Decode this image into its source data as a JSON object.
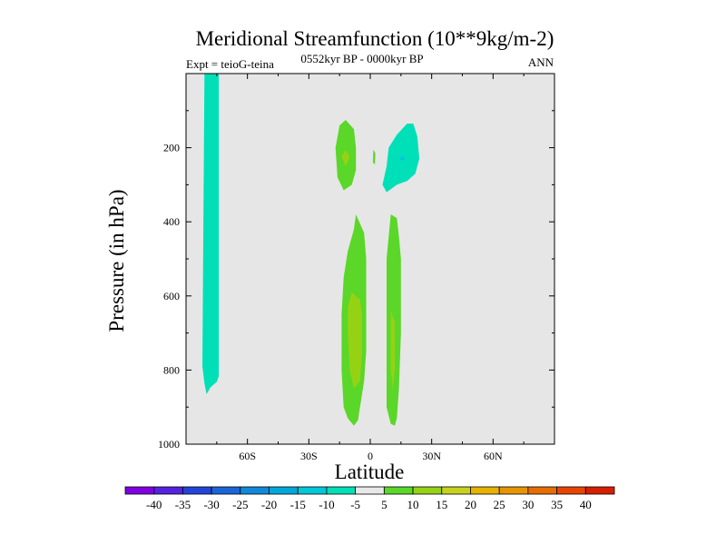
{
  "chart_data": {
    "type": "heatmap",
    "title": "Meridional Streamfunction (10**9kg/m-2)",
    "left_label": "Expt = teioG-teina",
    "center_label": "0552kyr BP - 0000kyr BP",
    "right_label": "ANN",
    "xlabel": "Latitude",
    "ylabel": "Pressure (in hPa)",
    "xlim": [
      -90,
      90
    ],
    "ylim": [
      1000,
      0
    ],
    "x_ticks": [
      {
        "value": -60,
        "label": "60S"
      },
      {
        "value": -30,
        "label": "30S"
      },
      {
        "value": 0,
        "label": "0"
      },
      {
        "value": 30,
        "label": "30N"
      },
      {
        "value": 60,
        "label": "60N"
      }
    ],
    "y_ticks": [
      {
        "value": 200,
        "label": "200"
      },
      {
        "value": 400,
        "label": "400"
      },
      {
        "value": 600,
        "label": "600"
      },
      {
        "value": 800,
        "label": "800"
      },
      {
        "value": 1000,
        "label": "1000"
      }
    ],
    "background_color": "#e6e6e6",
    "regions": [
      {
        "name": "negative-column-75S",
        "level": -7.5,
        "color": "#00e0b8",
        "polygon": [
          [
            -81,
            0
          ],
          [
            -74,
            0
          ],
          [
            -74,
            817
          ],
          [
            -75,
            832
          ],
          [
            -78,
            846
          ],
          [
            -80,
            865
          ],
          [
            -81,
            836
          ],
          [
            -82,
            790
          ]
        ]
      },
      {
        "name": "positive-upper-left",
        "level": 7.5,
        "color": "#5ad728",
        "polygon": [
          [
            -12,
            125
          ],
          [
            -8,
            150
          ],
          [
            -7,
            200
          ],
          [
            -7,
            260
          ],
          [
            -9,
            300
          ],
          [
            -13,
            315
          ],
          [
            -16,
            280
          ],
          [
            -17,
            200
          ],
          [
            -15,
            140
          ]
        ]
      },
      {
        "name": "positive-upper-left-core",
        "level": 12.5,
        "color": "#96d214",
        "polygon": [
          [
            -12,
            205
          ],
          [
            -10,
            225
          ],
          [
            -12,
            250
          ],
          [
            -14,
            225
          ]
        ]
      },
      {
        "name": "positive-sliver-eq",
        "level": 7.5,
        "color": "#5ad728",
        "polygon": [
          [
            1.5,
            205
          ],
          [
            2.5,
            215
          ],
          [
            2.3,
            245
          ],
          [
            1.3,
            240
          ]
        ]
      },
      {
        "name": "negative-upper-right",
        "level": -7.5,
        "color": "#00e0b8",
        "polygon": [
          [
            6,
            300
          ],
          [
            8,
            250
          ],
          [
            9,
            200
          ],
          [
            13,
            165
          ],
          [
            18,
            135
          ],
          [
            21,
            135
          ],
          [
            23,
            170
          ],
          [
            24,
            230
          ],
          [
            22,
            270
          ],
          [
            18,
            290
          ],
          [
            13,
            300
          ],
          [
            8,
            320
          ]
        ]
      },
      {
        "name": "negative-upper-right-core",
        "level": -12.5,
        "color": "#00c8d8",
        "polygon": [
          [
            14,
            230
          ],
          [
            16,
            222
          ],
          [
            17,
            230
          ],
          [
            16,
            236
          ]
        ]
      },
      {
        "name": "positive-lower-left",
        "level": 7.5,
        "color": "#5ad728",
        "polygon": [
          [
            -7,
            380
          ],
          [
            -3,
            430
          ],
          [
            -2,
            500
          ],
          [
            -2,
            620
          ],
          [
            -2,
            750
          ],
          [
            -3,
            830
          ],
          [
            -5,
            900
          ],
          [
            -6,
            935
          ],
          [
            -8,
            950
          ],
          [
            -11,
            930
          ],
          [
            -13,
            900
          ],
          [
            -14,
            800
          ],
          [
            -14,
            650
          ],
          [
            -13,
            550
          ],
          [
            -11,
            480
          ],
          [
            -8,
            420
          ]
        ]
      },
      {
        "name": "positive-lower-left-core",
        "level": 12.5,
        "color": "#96d214",
        "polygon": [
          [
            -9,
            590
          ],
          [
            -5,
            610
          ],
          [
            -4,
            650
          ],
          [
            -4,
            750
          ],
          [
            -5,
            830
          ],
          [
            -8,
            850
          ],
          [
            -10,
            800
          ],
          [
            -11,
            700
          ],
          [
            -11,
            630
          ]
        ]
      },
      {
        "name": "positive-lower-right",
        "level": 7.5,
        "color": "#5ad728",
        "polygon": [
          [
            10,
            380
          ],
          [
            13,
            390
          ],
          [
            14,
            440
          ],
          [
            15,
            500
          ],
          [
            15,
            700
          ],
          [
            14,
            850
          ],
          [
            13,
            930
          ],
          [
            12,
            950
          ],
          [
            10,
            945
          ],
          [
            8,
            900
          ],
          [
            8,
            700
          ],
          [
            8,
            500
          ],
          [
            9,
            440
          ]
        ]
      },
      {
        "name": "positive-lower-right-core",
        "level": 12.5,
        "color": "#96d214",
        "polygon": [
          [
            10,
            640
          ],
          [
            12,
            670
          ],
          [
            12,
            800
          ],
          [
            11,
            850
          ],
          [
            10,
            800
          ]
        ]
      }
    ],
    "colorbar": {
      "labels": [
        "-40",
        "-35",
        "-30",
        "-25",
        "-20",
        "-15",
        "-10",
        "-5",
        "5",
        "10",
        "15",
        "20",
        "25",
        "30",
        "35",
        "40"
      ],
      "colors": [
        "#8000e0",
        "#5522e0",
        "#2244d8",
        "#1a66d8",
        "#1188d8",
        "#00a8d8",
        "#00c8d8",
        "#00e0b8",
        "#e8e8e8",
        "#5ad728",
        "#96d214",
        "#c8d21e",
        "#e6b400",
        "#e69600",
        "#e66e00",
        "#e64600",
        "#d81e00"
      ]
    }
  }
}
